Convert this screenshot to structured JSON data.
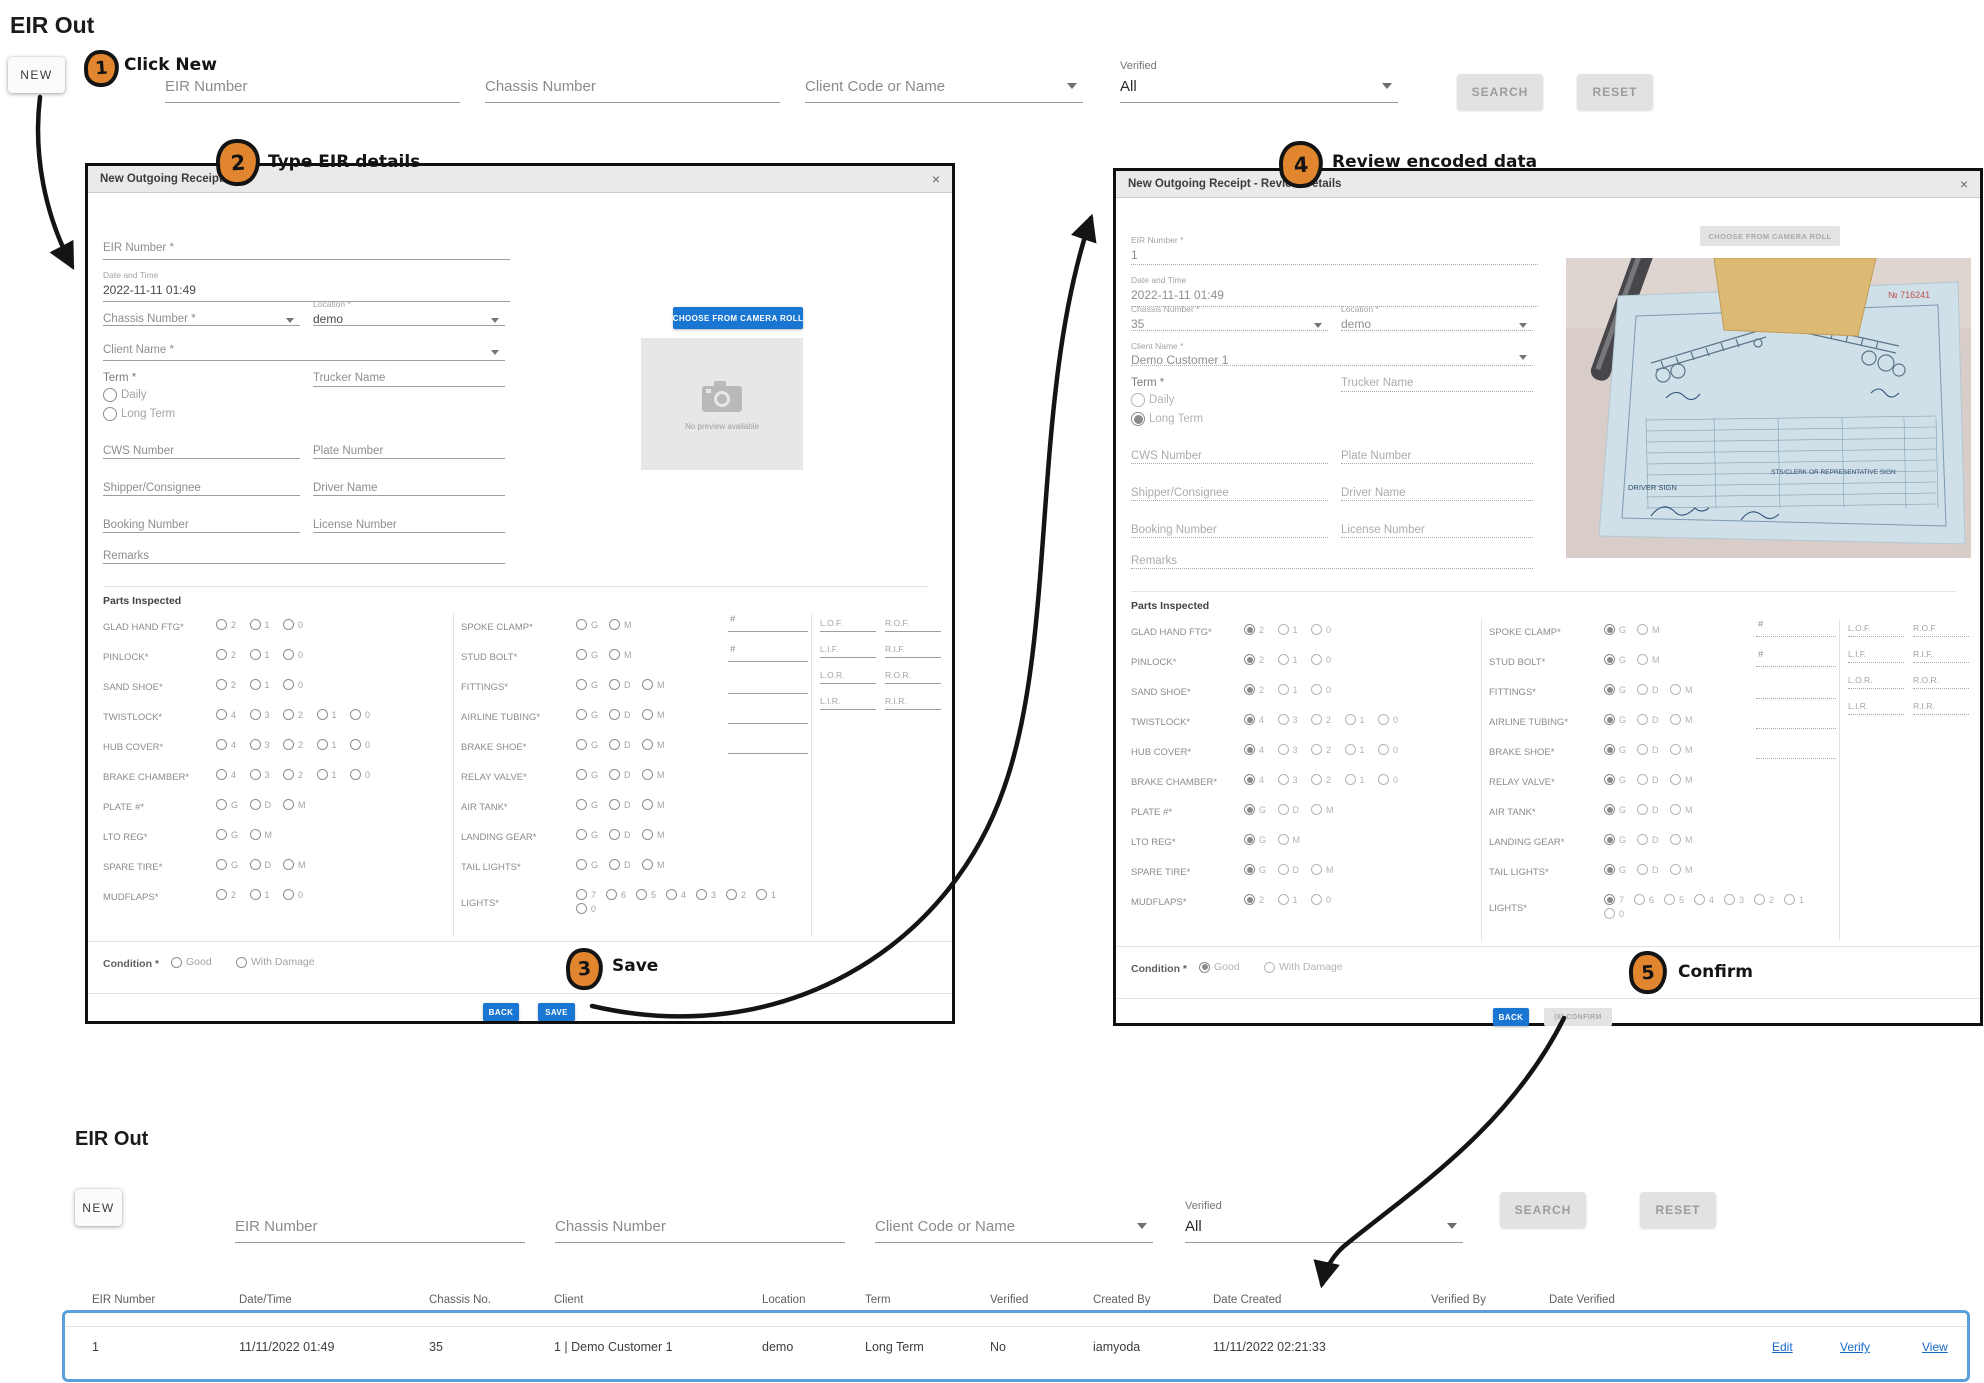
{
  "page_title": "EIR Out",
  "steps": [
    {
      "num": "1",
      "label": "Click New"
    },
    {
      "num": "2",
      "label": "Type EIR details"
    },
    {
      "num": "3",
      "label": "Save"
    },
    {
      "num": "4",
      "label": "Review encoded data"
    },
    {
      "num": "5",
      "label": "Confirm"
    }
  ],
  "filter_bar": {
    "new_button": "NEW",
    "eir_number_placeholder": "EIR Number",
    "chassis_placeholder": "Chassis Number",
    "client_placeholder": "Client Code or Name",
    "verified_label": "Verified",
    "verified_value": "All",
    "search_button": "SEARCH",
    "reset_button": "RESET"
  },
  "modal_fields": {
    "eir_label": "EIR Number *",
    "date_label": "Date and Time",
    "chassis_label": "Chassis Number *",
    "location_label": "Location *",
    "client_label": "Client Name *",
    "term_label": "Term *",
    "term_options": [
      "Daily",
      "Long Term"
    ],
    "trucker_label": "Trucker Name",
    "cws_label": "CWS Number",
    "plate_label": "Plate Number",
    "shipper_label": "Shipper/Consignee",
    "driver_label": "Driver Name",
    "booking_label": "Booking Number",
    "license_label": "License Number",
    "remarks_label": "Remarks",
    "parts_title": "Parts Inspected",
    "condition_label": "Condition *",
    "condition_options": [
      "Good",
      "With Damage"
    ],
    "camera_button": "CHOOSE FROM CAMERA ROLL",
    "no_preview": "No preview available",
    "number_placeholder": "#"
  },
  "parts_left": [
    {
      "label": "GLAD HAND FTG*",
      "options": [
        "2",
        "1",
        "0"
      ]
    },
    {
      "label": "PINLOCK*",
      "options": [
        "2",
        "1",
        "0"
      ]
    },
    {
      "label": "SAND SHOE*",
      "options": [
        "2",
        "1",
        "0"
      ]
    },
    {
      "label": "TWISTLOCK*",
      "options": [
        "4",
        "3",
        "2",
        "1",
        "0"
      ]
    },
    {
      "label": "HUB COVER*",
      "options": [
        "4",
        "3",
        "2",
        "1",
        "0"
      ]
    },
    {
      "label": "BRAKE CHAMBER*",
      "options": [
        "4",
        "3",
        "2",
        "1",
        "0"
      ]
    },
    {
      "label": "PLATE #*",
      "options": [
        "G",
        "D",
        "M"
      ]
    },
    {
      "label": "LTO REG*",
      "options": [
        "G",
        "M"
      ]
    },
    {
      "label": "SPARE TIRE*",
      "options": [
        "G",
        "D",
        "M"
      ]
    },
    {
      "label": "MUDFLAPS*",
      "options": [
        "2",
        "1",
        "0"
      ]
    }
  ],
  "parts_mid": [
    {
      "label": "SPOKE CLAMP*",
      "options": [
        "G",
        "M"
      ],
      "extra": "number"
    },
    {
      "label": "STUD BOLT*",
      "options": [
        "G",
        "M"
      ],
      "extra": "number"
    },
    {
      "label": "FITTINGS*",
      "options": [
        "G",
        "D",
        "M"
      ],
      "extra": "line"
    },
    {
      "label": "AIRLINE TUBING*",
      "options": [
        "G",
        "D",
        "M"
      ],
      "extra": "line"
    },
    {
      "label": "BRAKE SHOE*",
      "options": [
        "G",
        "D",
        "M"
      ],
      "extra": "line"
    },
    {
      "label": "RELAY VALVE*",
      "options": [
        "G",
        "D",
        "M"
      ]
    },
    {
      "label": "AIR TANK*",
      "options": [
        "G",
        "D",
        "M"
      ]
    },
    {
      "label": "LANDING GEAR*",
      "options": [
        "G",
        "D",
        "M"
      ]
    },
    {
      "label": "TAIL LIGHTS*",
      "options": [
        "G",
        "D",
        "M"
      ]
    },
    {
      "label": "LIGHTS*",
      "options": [
        "7",
        "6",
        "5",
        "4",
        "3",
        "2",
        "1",
        "0"
      ],
      "wrap": true
    }
  ],
  "tire_labels": [
    [
      "L.O.F.",
      "R.O.F."
    ],
    [
      "L.I.F.",
      "R.I.F."
    ],
    [
      "L.O.R.",
      "R.O.R."
    ],
    [
      "L.I.R.",
      "R.I.R."
    ]
  ],
  "modal1": {
    "title": "New Outgoing Receipt",
    "close": "×",
    "date_value": "2022-11-11 01:49",
    "location_value": "demo",
    "back_button": "BACK",
    "save_button": "SAVE"
  },
  "modal2": {
    "title": "New Outgoing Receipt - Review Details",
    "close": "×",
    "values": {
      "eir_number": "1",
      "date": "2022-11-11 01:49",
      "chassis": "35",
      "location": "demo",
      "client": "Demo Customer 1",
      "term": "Long Term",
      "condition": "Good"
    },
    "selected_option_index": 0,
    "back_button": "BACK",
    "confirm_button": "(8) CONFIRM"
  },
  "photo": {
    "ribbon": "№ 716241",
    "sign_left": "DRIVER SIGN",
    "sign_right": "STS/CLERK OR REPRESENTATIVE SIGN"
  },
  "table": {
    "headers": [
      "EIR Number",
      "Date/Time",
      "Chassis No.",
      "Client",
      "Location",
      "Term",
      "Verified",
      "Created By",
      "Date Created",
      "Verified By",
      "Date Verified"
    ],
    "row": [
      "1",
      "11/11/2022 01:49",
      "35",
      "1 | Demo Customer 1",
      "demo",
      "Long Term",
      "No",
      "iamyoda",
      "11/11/2022 02:21:33",
      "",
      ""
    ],
    "actions": [
      "Edit",
      "Verify",
      "View"
    ]
  },
  "colors": {
    "primary": "#1976d2",
    "badge_orange": "#e1862e",
    "table_highlight": "#5b9fe0"
  }
}
